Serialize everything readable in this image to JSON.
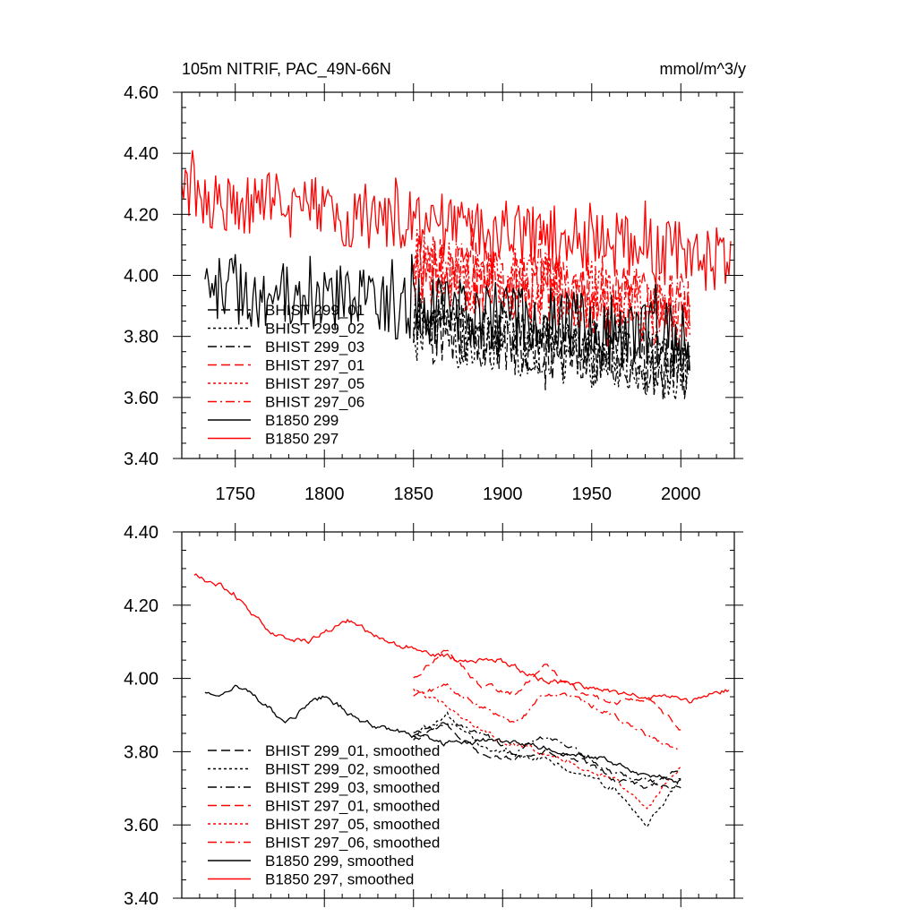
{
  "chart_data": [
    {
      "type": "line",
      "title_left": "105m NITRIF, PAC_49N-66N",
      "title_right": "mmol/m^3/y",
      "xlim": [
        1720,
        2030
      ],
      "ylim": [
        3.4,
        4.6
      ],
      "x_ticks": [
        1750,
        1800,
        1850,
        1900,
        1950,
        2000
      ],
      "y_ticks": [
        "3.40",
        "3.60",
        "3.80",
        "4.00",
        "4.20",
        "4.40",
        "4.60"
      ],
      "legend_position": "lower-left",
      "series": [
        {
          "name": "BHIST 299_01",
          "color": "#000000",
          "dash": "dash",
          "x_start": 1850,
          "x_end": 2005,
          "mean": 3.76,
          "amp": 0.1,
          "trend": -0.14
        },
        {
          "name": "BHIST 299_02",
          "color": "#000000",
          "dash": "dot",
          "x_start": 1850,
          "x_end": 2005,
          "mean": 3.76,
          "amp": 0.1,
          "trend": -0.14
        },
        {
          "name": "BHIST 299_03",
          "color": "#000000",
          "dash": "dashdot",
          "x_start": 1850,
          "x_end": 2005,
          "mean": 3.76,
          "amp": 0.1,
          "trend": -0.14
        },
        {
          "name": "BHIST 297_01",
          "color": "#ff0000",
          "dash": "dash",
          "x_start": 1850,
          "x_end": 2005,
          "mean": 3.95,
          "amp": 0.11,
          "trend": -0.16
        },
        {
          "name": "BHIST 297_05",
          "color": "#ff0000",
          "dash": "dot",
          "x_start": 1850,
          "x_end": 2005,
          "mean": 3.95,
          "amp": 0.11,
          "trend": -0.16
        },
        {
          "name": "BHIST 297_06",
          "color": "#ff0000",
          "dash": "dashdot",
          "x_start": 1850,
          "x_end": 2005,
          "mean": 3.95,
          "amp": 0.11,
          "trend": -0.16
        },
        {
          "name": "B1850 299",
          "color": "#000000",
          "dash": "solid",
          "x_start": 1733,
          "x_end": 2005,
          "mean": 3.88,
          "amp": 0.11,
          "trend": -0.18
        },
        {
          "name": "B1850 297",
          "color": "#ff0000",
          "dash": "solid",
          "x_start": 1720,
          "x_end": 2028,
          "mean": 4.16,
          "amp": 0.1,
          "trend": -0.22
        }
      ]
    },
    {
      "type": "line",
      "xlim": [
        1720,
        2030
      ],
      "ylim": [
        3.4,
        4.4
      ],
      "y_ticks": [
        "3.40",
        "3.60",
        "3.80",
        "4.00",
        "4.20",
        "4.40"
      ],
      "legend_position": "lower-left",
      "series": [
        {
          "name": "BHIST 299_01, smoothed",
          "color": "#000000",
          "dash": "dash",
          "x_start": 1850,
          "x_end": 2000,
          "values": [
            3.85,
            3.87,
            3.8,
            3.78,
            3.8,
            3.78,
            3.72,
            3.7,
            3.75
          ]
        },
        {
          "name": "BHIST 299_02, smoothed",
          "color": "#000000",
          "dash": "dot",
          "x_start": 1850,
          "x_end": 2000,
          "values": [
            3.84,
            3.9,
            3.82,
            3.79,
            3.78,
            3.74,
            3.7,
            3.6,
            3.73
          ]
        },
        {
          "name": "BHIST 299_03, smoothed",
          "color": "#000000",
          "dash": "dashdot",
          "x_start": 1850,
          "x_end": 2000,
          "values": [
            3.83,
            3.88,
            3.85,
            3.8,
            3.84,
            3.8,
            3.74,
            3.72,
            3.7
          ]
        },
        {
          "name": "BHIST 297_01, smoothed",
          "color": "#ff0000",
          "dash": "dash",
          "x_start": 1850,
          "x_end": 2000,
          "values": [
            4.0,
            4.08,
            3.98,
            3.96,
            4.04,
            3.96,
            3.93,
            3.94,
            3.86
          ]
        },
        {
          "name": "BHIST 297_05, smoothed",
          "color": "#ff0000",
          "dash": "dot",
          "x_start": 1850,
          "x_end": 2000,
          "values": [
            3.97,
            3.92,
            3.86,
            3.82,
            3.8,
            3.76,
            3.72,
            3.65,
            3.76
          ]
        },
        {
          "name": "BHIST 297_06, smoothed",
          "color": "#ff0000",
          "dash": "dashdot",
          "x_start": 1850,
          "x_end": 2000,
          "values": [
            3.95,
            3.98,
            3.92,
            3.88,
            3.96,
            3.94,
            3.9,
            3.84,
            3.8
          ]
        },
        {
          "name": "B1850 299, smoothed",
          "color": "#000000",
          "dash": "solid",
          "x_start": 1733,
          "x_end": 2000,
          "values": [
            3.96,
            3.98,
            3.88,
            3.95,
            3.88,
            3.85,
            3.82,
            3.83,
            3.82,
            3.8,
            3.78,
            3.74,
            3.72
          ]
        },
        {
          "name": "B1850 297, smoothed",
          "color": "#ff0000",
          "dash": "solid",
          "x_start": 1727,
          "x_end": 2027,
          "values": [
            4.28,
            4.24,
            4.12,
            4.1,
            4.16,
            4.1,
            4.08,
            4.05,
            4.05,
            4.0,
            3.98,
            3.96,
            3.95,
            3.94,
            3.97
          ]
        }
      ]
    }
  ]
}
